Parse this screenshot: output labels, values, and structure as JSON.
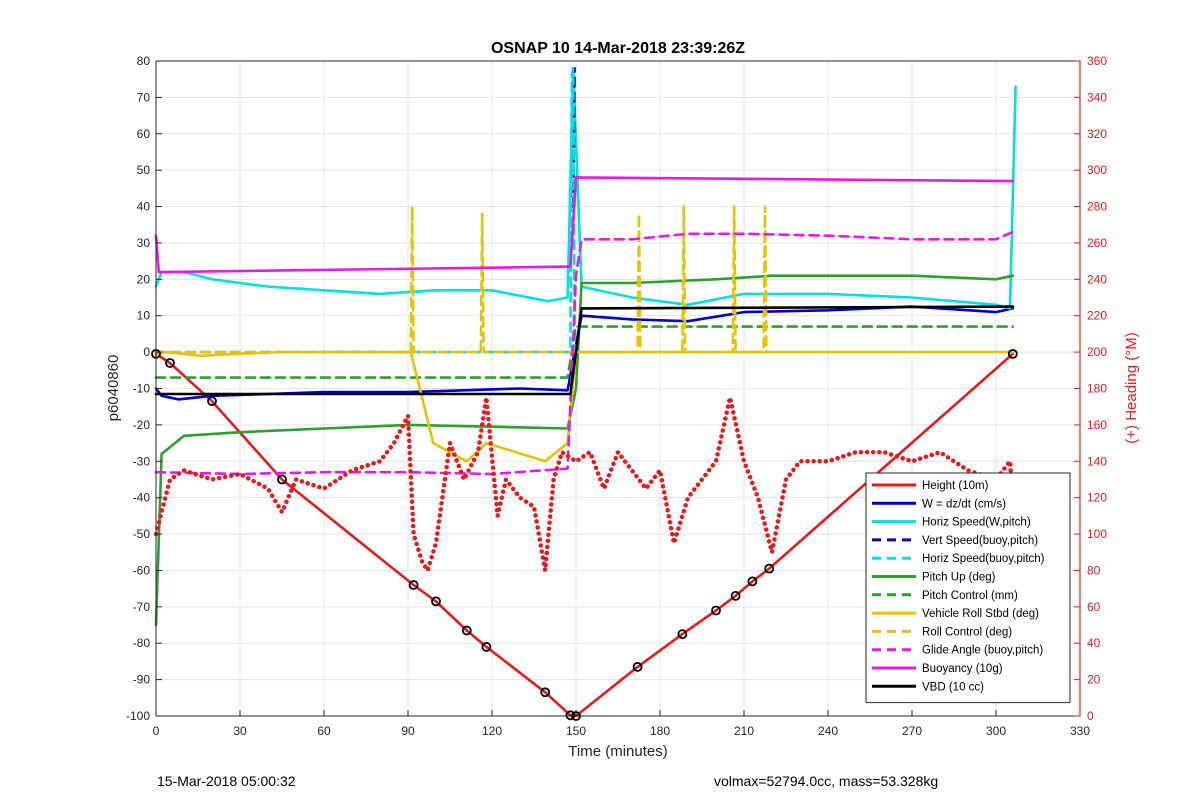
{
  "chart_data": {
    "type": "line",
    "title": "OSNAP 10 14-Mar-2018 23:39:26Z",
    "xlabel": "Time (minutes)",
    "ylabel": "p6040860",
    "y2label": "(+) Heading (°M)",
    "xlim": [
      0,
      330
    ],
    "ylim": [
      -100,
      80
    ],
    "y2lim": [
      0,
      360
    ],
    "xticks": [
      0,
      30,
      60,
      90,
      120,
      150,
      180,
      210,
      240,
      270,
      300,
      330
    ],
    "yticks": [
      -100,
      -90,
      -80,
      -70,
      -60,
      -50,
      -40,
      -30,
      -20,
      -10,
      0,
      10,
      20,
      30,
      40,
      50,
      60,
      70,
      80
    ],
    "y2ticks": [
      0,
      20,
      40,
      60,
      80,
      100,
      120,
      140,
      160,
      180,
      200,
      220,
      240,
      260,
      280,
      300,
      320,
      340,
      360
    ],
    "grid": true,
    "legend_position": "bottom-right",
    "series": [
      {
        "name": "Height (10m)",
        "color": "#e41a1c",
        "style": "solid",
        "axis": "left",
        "x": [
          0,
          5,
          20,
          45,
          92,
          100,
          111,
          118,
          139,
          148,
          150,
          172,
          188,
          200,
          207,
          213,
          219,
          306
        ],
        "y": [
          -0.5,
          -3,
          -13.5,
          -35,
          -64,
          -68.5,
          -76.5,
          -81,
          -93.5,
          -99.8,
          -100,
          -86.5,
          -77.5,
          -71,
          -67,
          -63,
          -59.5,
          -0.5
        ]
      },
      {
        "name": "W = dz/dt (cm/s)",
        "color": "#0000cc",
        "style": "solid",
        "axis": "left",
        "x": [
          0,
          2,
          8,
          20,
          40,
          60,
          90,
          110,
          130,
          147,
          150,
          152,
          170,
          190,
          210,
          240,
          270,
          300,
          306
        ],
        "y": [
          -10,
          -12,
          -13,
          -12,
          -11.5,
          -11,
          -11,
          -10.5,
          -10,
          -10.5,
          2,
          10,
          9,
          8.5,
          11,
          11.5,
          12.5,
          11,
          12
        ]
      },
      {
        "name": "Horiz Speed(W,pitch)",
        "color": "#00e0e0",
        "style": "solid",
        "axis": "left",
        "x": [
          0,
          2,
          10,
          20,
          40,
          60,
          80,
          100,
          120,
          140,
          147,
          149,
          152,
          170,
          190,
          210,
          240,
          270,
          300,
          305,
          307
        ],
        "y": [
          18,
          22,
          22,
          20,
          18,
          17,
          16,
          17,
          17,
          14,
          15,
          78,
          18,
          15,
          13,
          16,
          16,
          15,
          13,
          12,
          73
        ]
      },
      {
        "name": "Vert Speed(buoy,pitch)",
        "color": "#0000cc",
        "style": "dashed",
        "axis": "left",
        "x": [
          149,
          149.5
        ],
        "y": [
          40,
          78
        ]
      },
      {
        "name": "Horiz Speed(buoy,pitch)",
        "color": "#00e0e0",
        "style": "dashed",
        "axis": "left",
        "x": [
          0,
          148,
          148.5,
          149,
          149.5,
          152
        ],
        "y": [
          0,
          0,
          76,
          78,
          0,
          0
        ]
      },
      {
        "name": "Pitch Up (deg)",
        "color": "#2ca02c",
        "style": "solid",
        "axis": "left",
        "x": [
          0,
          2,
          10,
          30,
          60,
          90,
          120,
          147,
          150,
          152,
          170,
          200,
          220,
          240,
          270,
          300,
          306
        ],
        "y": [
          -75,
          -28,
          -23,
          -22,
          -21,
          -20,
          -20.5,
          -21,
          -10,
          19,
          19,
          20,
          21,
          21,
          21,
          20,
          21
        ]
      },
      {
        "name": "Pitch Control (mm)",
        "color": "#2ca02c",
        "style": "dashed",
        "axis": "left",
        "x": [
          0,
          2,
          147,
          150,
          306
        ],
        "y": [
          -7,
          -7,
          -7,
          7,
          7
        ]
      },
      {
        "name": "Vehicle Roll Stbd (deg)",
        "color": "#e6c200",
        "style": "solid",
        "axis": "left",
        "x": [
          0,
          3,
          16,
          44,
          91,
          99,
          111,
          118,
          139,
          147,
          150,
          172,
          188,
          200,
          207,
          213,
          219,
          306
        ],
        "y": [
          -1,
          0,
          -1,
          0,
          0,
          -25,
          -30,
          -25,
          -30,
          -25,
          0,
          0,
          0,
          0,
          0,
          0,
          0,
          0
        ]
      },
      {
        "name": "Roll Control (deg)",
        "color": "#e6c200",
        "style": "dashed",
        "axis": "left",
        "x": [
          0,
          91,
          91.5,
          92,
          116,
          116.5,
          117,
          172,
          172.5,
          173,
          188,
          188.5,
          189,
          206,
          206.5,
          207,
          217,
          217.5,
          218
        ],
        "y": [
          0,
          0,
          40,
          0,
          0,
          38,
          0,
          0,
          38,
          0,
          0,
          40,
          0,
          0,
          40,
          0,
          0,
          40,
          0
        ]
      },
      {
        "name": "Glide Angle (buoy,pitch)",
        "color": "#e619e6",
        "style": "dashed",
        "axis": "left",
        "x": [
          0,
          30,
          60,
          90,
          120,
          147,
          150,
          152,
          170,
          190,
          210,
          240,
          270,
          300,
          306
        ],
        "y": [
          -33,
          -33.5,
          -33,
          -33,
          -33.5,
          -32,
          21,
          31,
          31,
          32.5,
          32.5,
          32,
          31,
          31,
          33
        ]
      },
      {
        "name": "Buoyancy (10g)",
        "color": "#e619e6",
        "style": "solid",
        "axis": "left",
        "x": [
          0,
          1,
          2,
          147,
          148,
          150,
          306
        ],
        "y": [
          32,
          22,
          22,
          23.5,
          23.5,
          48,
          47
        ]
      },
      {
        "name": "VBD (10 cc)",
        "color": "#000000",
        "style": "solid",
        "axis": "left",
        "x": [
          0,
          1,
          2,
          147,
          148,
          150,
          152,
          306
        ],
        "y": [
          -11.5,
          -11.5,
          -11.5,
          -11.5,
          -11.5,
          0,
          12,
          12.5
        ]
      },
      {
        "name": "Heading",
        "color": "#e41a1c",
        "style": "dotted",
        "axis": "right",
        "x": [
          0,
          5,
          10,
          20,
          30,
          40,
          45,
          50,
          60,
          70,
          80,
          85,
          90,
          92,
          95,
          97,
          100,
          105,
          110,
          115,
          118,
          122,
          125,
          130,
          135,
          139,
          142,
          145,
          150,
          155,
          160,
          165,
          170,
          175,
          180,
          185,
          190,
          195,
          200,
          205,
          210,
          215,
          220,
          225,
          230,
          240,
          250,
          260,
          270,
          280,
          290,
          300,
          305,
          306
        ],
        "y": [
          100,
          130,
          135,
          130,
          133,
          125,
          112,
          130,
          125,
          135,
          140,
          150,
          165,
          100,
          85,
          80,
          95,
          150,
          130,
          145,
          175,
          110,
          130,
          120,
          115,
          80,
          130,
          145,
          140,
          145,
          125,
          145,
          135,
          125,
          135,
          95,
          120,
          130,
          140,
          175,
          140,
          120,
          90,
          130,
          140,
          140,
          145,
          145,
          140,
          145,
          135,
          130,
          140,
          120
        ]
      }
    ]
  },
  "footer": {
    "left": "15-Mar-2018 05:00:32",
    "right": "volmax=52794.0cc, mass=53.328kg"
  }
}
